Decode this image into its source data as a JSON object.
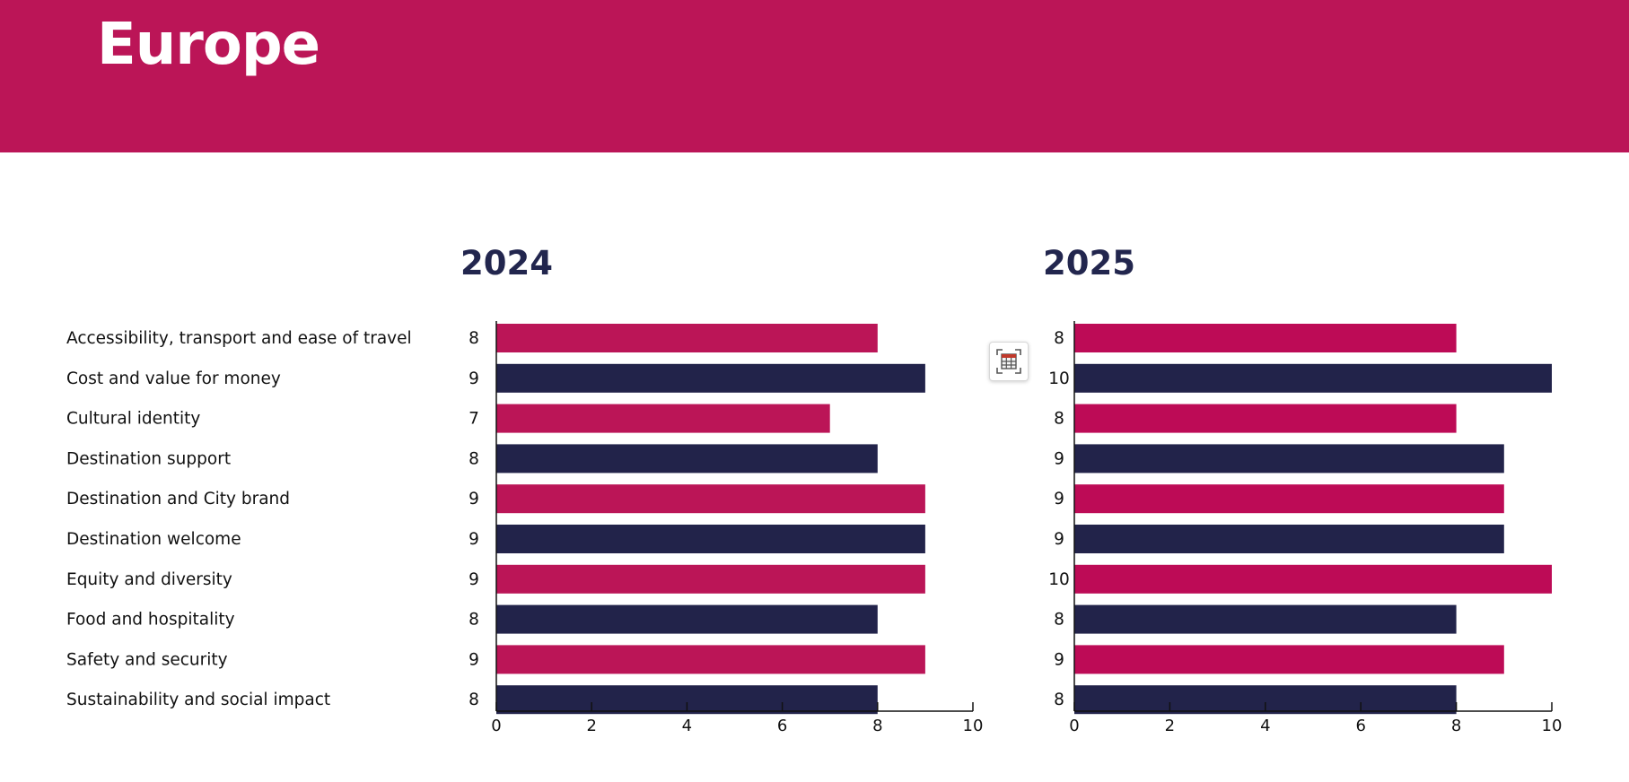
{
  "header": {
    "title": "Europe"
  },
  "colors": {
    "header": "#bb1557",
    "pink": "#bb1557",
    "pink2025": "#bd0b56",
    "navy": "#22234a",
    "year_text": "#22264e"
  },
  "toolbar": {
    "icon": "table-grid-icon"
  },
  "categories": [
    "Accessibility, transport and ease of travel",
    "Cost and value for money",
    "Cultural identity",
    "Destination support",
    "Destination and City brand",
    "Destination welcome",
    "Equity and diversity",
    "Food and hospitality",
    "Safety and security",
    "Sustainability and social impact"
  ],
  "chart_data": [
    {
      "type": "bar",
      "orientation": "horizontal",
      "title": "2024",
      "categories": [
        "Accessibility, transport and ease of travel",
        "Cost and value for money",
        "Cultural identity",
        "Destination support",
        "Destination and City brand",
        "Destination welcome",
        "Equity and diversity",
        "Food and hospitality",
        "Safety and security",
        "Sustainability and social impact"
      ],
      "values": [
        8,
        9,
        7,
        8,
        9,
        9,
        9,
        8,
        9,
        8
      ],
      "labels": [
        "8",
        "9",
        "7",
        "8",
        "9",
        "9",
        "9",
        "8",
        "9",
        "8"
      ],
      "xlim": [
        0,
        10
      ],
      "xticks": [
        "0",
        "2",
        "4",
        "6",
        "8",
        "10"
      ],
      "bar_colors": [
        "#bb1557",
        "#22234a"
      ]
    },
    {
      "type": "bar",
      "orientation": "horizontal",
      "title": "2025",
      "categories": [
        "Accessibility, transport and ease of travel",
        "Cost and value for money",
        "Cultural identity",
        "Destination support",
        "Destination and City brand",
        "Destination welcome",
        "Equity and diversity",
        "Food and hospitality",
        "Safety and security",
        "Sustainability and social impact"
      ],
      "values": [
        8,
        10,
        8,
        9,
        9,
        9,
        10,
        8,
        9,
        8
      ],
      "labels": [
        "8",
        "10",
        "8",
        "9",
        "9",
        "9",
        "10",
        "8",
        "9",
        "8"
      ],
      "xlim": [
        0,
        10
      ],
      "xticks": [
        "0",
        "2",
        "4",
        "6",
        "8",
        "10"
      ],
      "bar_colors": [
        "#bd0b56",
        "#22234a"
      ]
    }
  ]
}
